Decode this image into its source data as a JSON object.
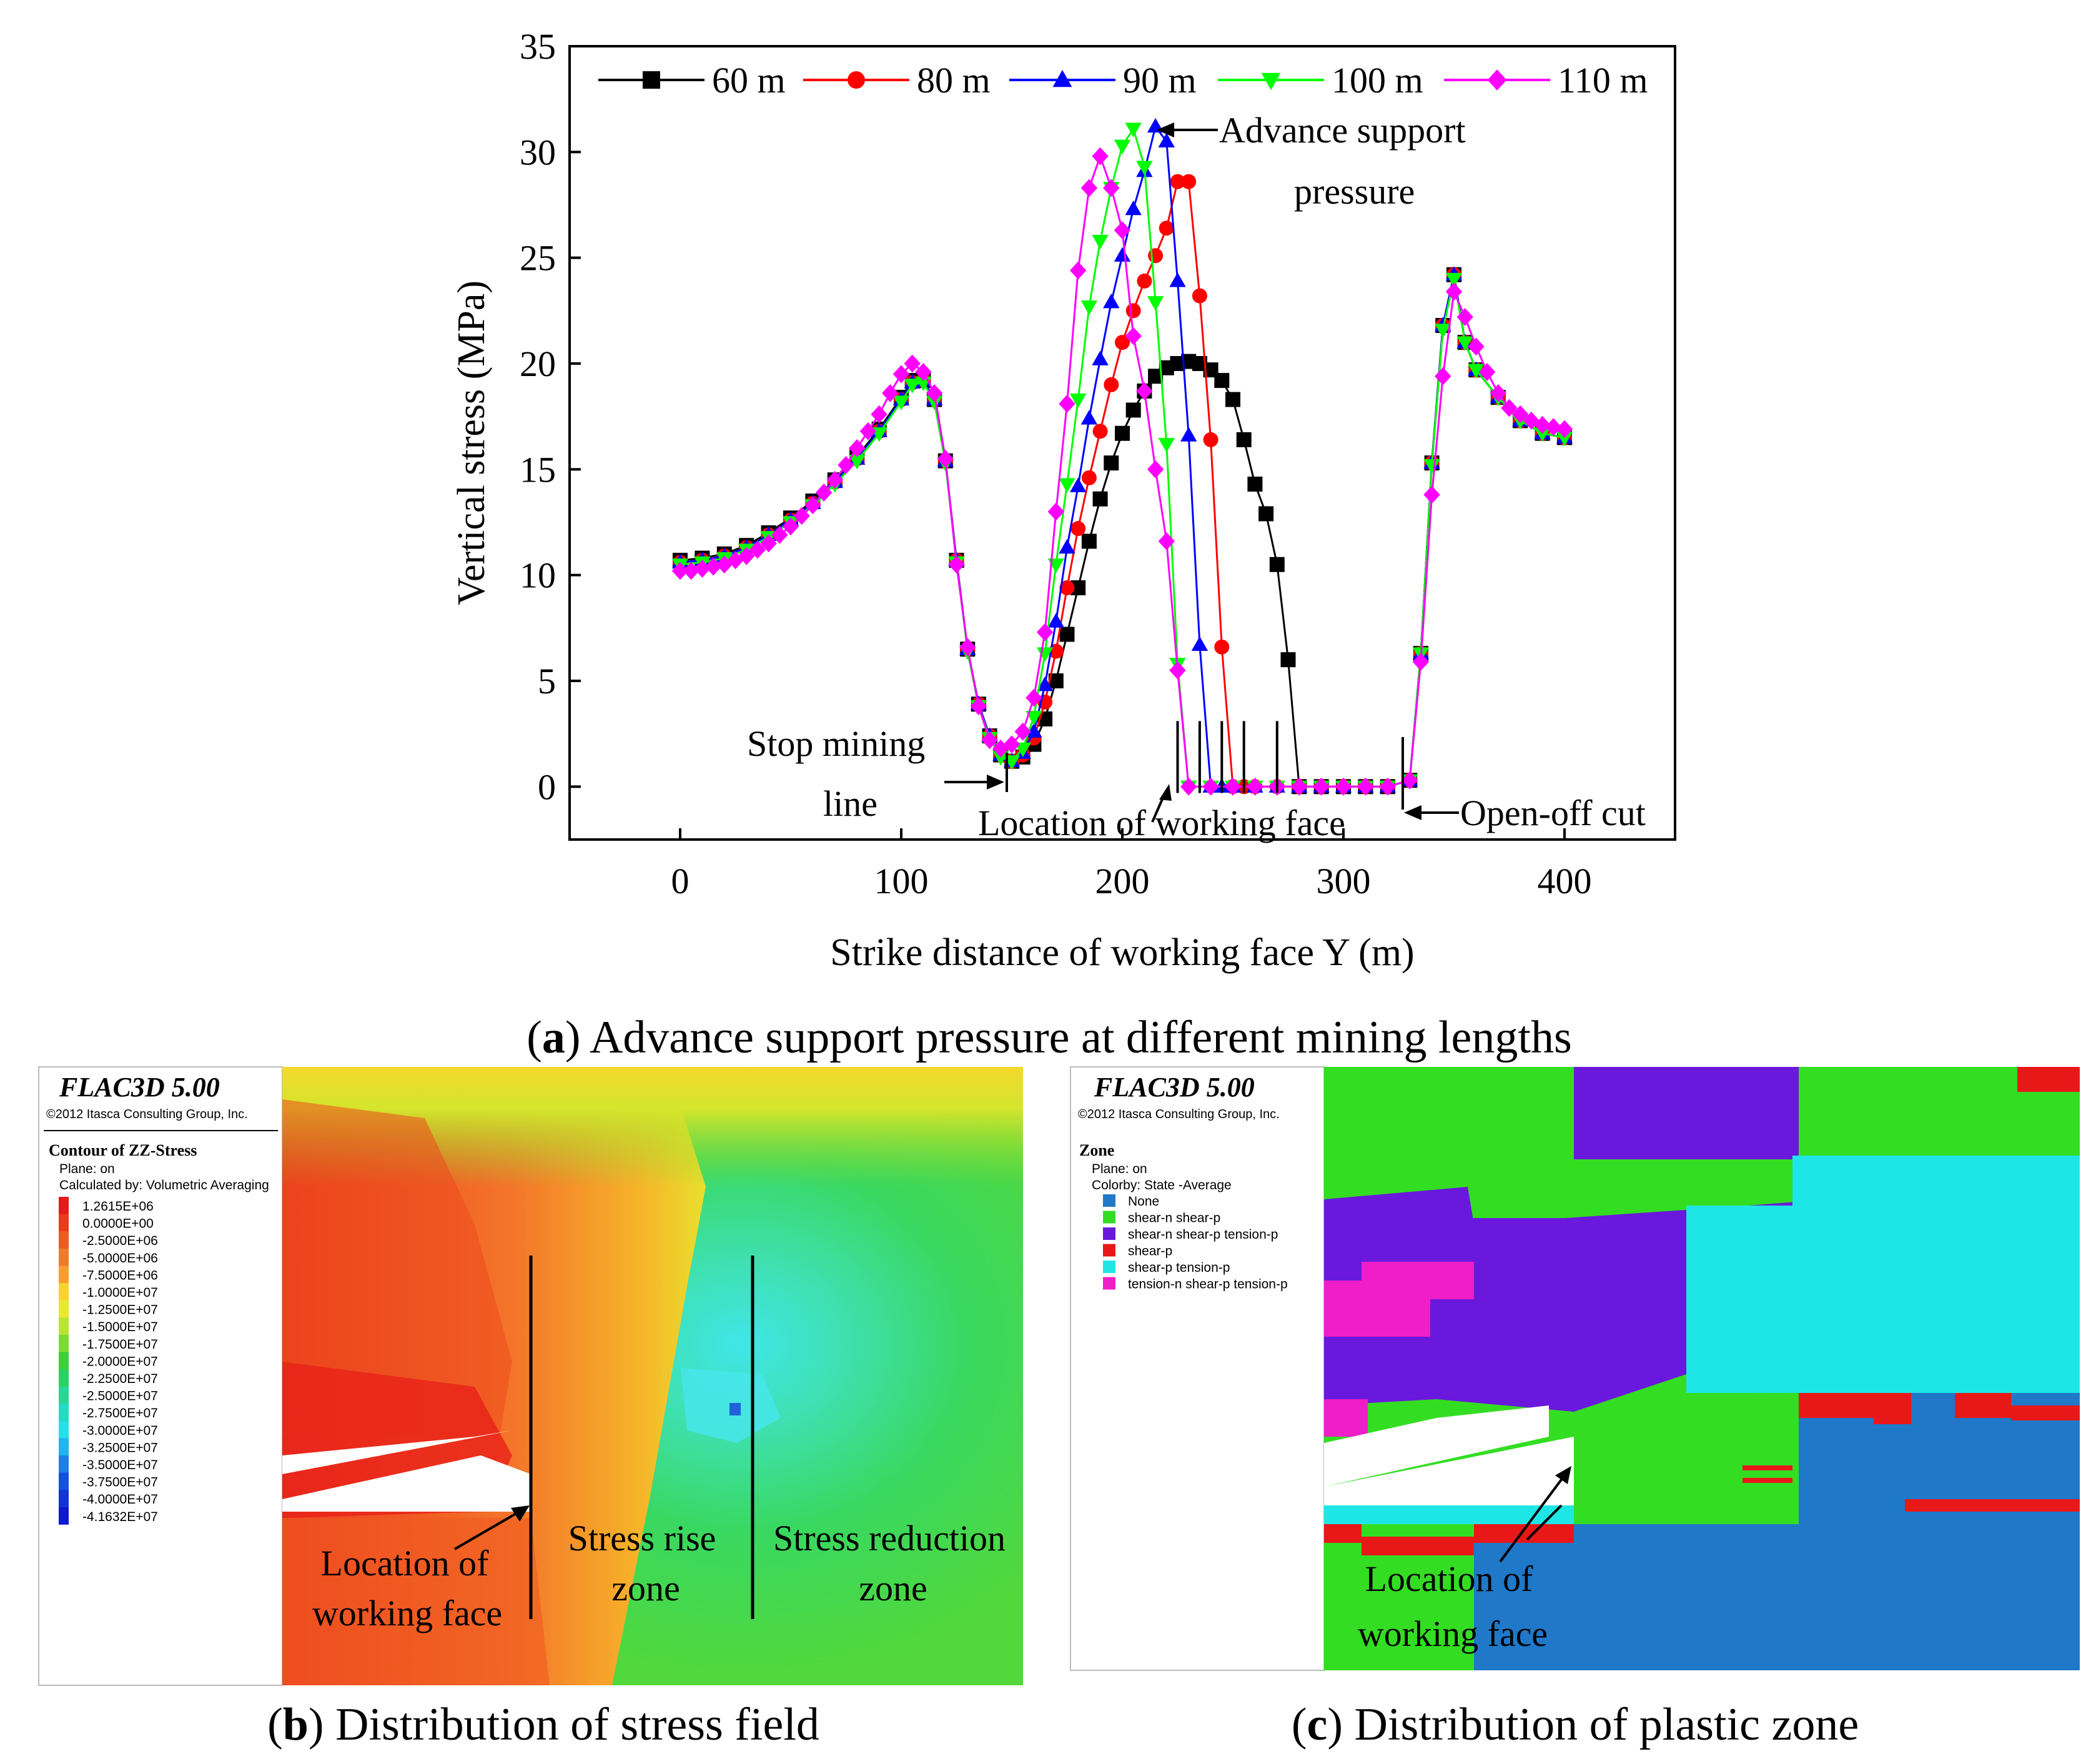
{
  "chart_data": {
    "type": "line",
    "xlabel": "Strike distance of working face Y (m)",
    "ylabel": "Vertical stress (MPa)",
    "xlim": [
      -50,
      450
    ],
    "ylim": [
      -2.5,
      35
    ],
    "xticks": [
      0,
      100,
      200,
      300,
      400
    ],
    "yticks": [
      0,
      5,
      10,
      15,
      20,
      25,
      30,
      35
    ],
    "legend_position": "top",
    "series": [
      {
        "name": "60 m",
        "color": "#000000",
        "marker": "square",
        "x": [
          0,
          10,
          20,
          30,
          40,
          50,
          60,
          70,
          80,
          90,
          100,
          105,
          110,
          115,
          120,
          125,
          130,
          135,
          140,
          145,
          150,
          155,
          160,
          165,
          170,
          175,
          180,
          185,
          190,
          195,
          200,
          205,
          210,
          215,
          220,
          225,
          230,
          235,
          240,
          245,
          250,
          255,
          260,
          265,
          270,
          275,
          280,
          290,
          300,
          310,
          320,
          330,
          335,
          340,
          345,
          350,
          355,
          360,
          370,
          380,
          390,
          400
        ],
        "y": [
          10.7,
          10.8,
          11,
          11.4,
          12,
          12.7,
          13.5,
          14.5,
          15.6,
          16.9,
          18.4,
          19.2,
          19.2,
          18.3,
          15.4,
          10.7,
          6.5,
          3.9,
          2.4,
          1.5,
          1.2,
          1.4,
          2,
          3.2,
          5,
          7.2,
          9.4,
          11.6,
          13.6,
          15.3,
          16.7,
          17.8,
          18.7,
          19.4,
          19.8,
          20,
          20.1,
          20,
          19.7,
          19.2,
          18.3,
          16.4,
          14.3,
          12.9,
          10.5,
          6,
          0,
          0,
          0,
          0,
          0,
          0.3,
          6.3,
          15.3,
          21.8,
          24.2,
          21,
          19.7,
          18.4,
          17.3,
          16.7,
          16.5
        ]
      },
      {
        "name": "80 m",
        "color": "#FF0000",
        "marker": "circle",
        "x": [
          0,
          10,
          20,
          30,
          40,
          50,
          60,
          70,
          80,
          90,
          100,
          105,
          110,
          115,
          120,
          125,
          130,
          135,
          140,
          145,
          150,
          155,
          160,
          165,
          170,
          175,
          180,
          185,
          190,
          195,
          200,
          205,
          210,
          215,
          220,
          225,
          230,
          235,
          240,
          245,
          250,
          255,
          260,
          270,
          280,
          290,
          300,
          310,
          320,
          330,
          335,
          340,
          345,
          350,
          355,
          360,
          370,
          380,
          390,
          400
        ],
        "y": [
          10.6,
          10.7,
          10.9,
          11.3,
          11.9,
          12.6,
          13.4,
          14.4,
          15.5,
          16.8,
          18.3,
          19.1,
          19.2,
          18.3,
          15.4,
          10.7,
          6.5,
          3.9,
          2.4,
          1.5,
          1.2,
          1.5,
          2.3,
          4,
          6.4,
          9.4,
          12.2,
          14.6,
          16.8,
          19,
          21,
          22.5,
          23.9,
          25.1,
          26.4,
          28.6,
          28.6,
          23.2,
          16.4,
          6.6,
          0,
          0,
          0,
          0,
          0,
          0,
          0,
          0,
          0,
          0.3,
          6.3,
          15.3,
          21.8,
          24.2,
          21,
          19.7,
          18.4,
          17.3,
          16.7,
          16.5
        ]
      },
      {
        "name": "90 m",
        "color": "#0000FF",
        "marker": "triangle-up",
        "x": [
          0,
          10,
          20,
          30,
          40,
          50,
          60,
          70,
          80,
          90,
          100,
          105,
          110,
          115,
          120,
          125,
          130,
          135,
          140,
          145,
          150,
          155,
          160,
          165,
          170,
          175,
          180,
          185,
          190,
          195,
          200,
          205,
          210,
          215,
          220,
          225,
          230,
          235,
          240,
          245,
          250,
          260,
          270,
          280,
          290,
          300,
          310,
          320,
          330,
          335,
          340,
          345,
          350,
          355,
          360,
          370,
          380,
          390,
          400
        ],
        "y": [
          10.6,
          10.7,
          10.9,
          11.3,
          11.9,
          12.6,
          13.4,
          14.4,
          15.5,
          16.8,
          18.3,
          19.1,
          19.2,
          18.3,
          15.4,
          10.7,
          6.5,
          3.9,
          2.4,
          1.5,
          1.2,
          1.6,
          2.6,
          4.8,
          7.8,
          11.3,
          14.2,
          17.4,
          20.2,
          22.9,
          25.1,
          27.3,
          29.1,
          31.2,
          30.5,
          23.9,
          16.6,
          6.7,
          0,
          0,
          0,
          0,
          0,
          0,
          0,
          0,
          0,
          0,
          0.3,
          6.3,
          15.3,
          21.8,
          24.2,
          21,
          19.7,
          18.4,
          17.3,
          16.7,
          16.5
        ]
      },
      {
        "name": "100 m",
        "color": "#00FF00",
        "marker": "triangle-down",
        "x": [
          0,
          10,
          20,
          30,
          40,
          50,
          60,
          70,
          80,
          90,
          100,
          105,
          110,
          115,
          120,
          125,
          130,
          135,
          140,
          145,
          150,
          155,
          160,
          165,
          170,
          175,
          180,
          185,
          190,
          195,
          200,
          205,
          210,
          215,
          220,
          225,
          230,
          240,
          250,
          260,
          270,
          280,
          290,
          300,
          310,
          320,
          330,
          335,
          340,
          345,
          350,
          355,
          360,
          370,
          380,
          390,
          400
        ],
        "y": [
          10.5,
          10.6,
          10.8,
          11.2,
          11.8,
          12.5,
          13.3,
          14.3,
          15.4,
          16.7,
          18.2,
          19,
          19.1,
          18.2,
          15.3,
          10.6,
          6.4,
          3.8,
          2.3,
          1.4,
          1.2,
          1.8,
          3.3,
          6.3,
          10.5,
          14.3,
          18.3,
          22.7,
          25.8,
          28.3,
          30.3,
          31.1,
          29.3,
          22.9,
          16.2,
          5.8,
          0,
          0,
          0,
          0,
          0,
          0,
          0,
          0,
          0,
          0,
          0.3,
          6.3,
          15.2,
          21.6,
          24,
          21,
          19.7,
          18.4,
          17.3,
          16.7,
          16.5
        ]
      },
      {
        "name": "110 m",
        "color": "#FF00FF",
        "marker": "diamond",
        "x": [
          0,
          5,
          10,
          15,
          20,
          25,
          30,
          35,
          40,
          45,
          50,
          55,
          60,
          65,
          70,
          75,
          80,
          85,
          90,
          95,
          100,
          105,
          110,
          115,
          120,
          125,
          130,
          135,
          140,
          145,
          150,
          155,
          160,
          165,
          170,
          175,
          180,
          185,
          190,
          195,
          200,
          205,
          210,
          215,
          220,
          225,
          230,
          240,
          250,
          260,
          270,
          280,
          290,
          300,
          310,
          320,
          330,
          335,
          340,
          345,
          350,
          355,
          360,
          365,
          370,
          375,
          380,
          385,
          390,
          395,
          400
        ],
        "y": [
          10.2,
          10.2,
          10.3,
          10.4,
          10.5,
          10.7,
          10.9,
          11.2,
          11.5,
          11.9,
          12.3,
          12.8,
          13.3,
          13.9,
          14.5,
          15.2,
          16,
          16.8,
          17.6,
          18.6,
          19.5,
          20,
          19.6,
          18.6,
          15.5,
          10.5,
          6.6,
          3.8,
          2.2,
          1.8,
          2,
          2.6,
          4.2,
          7.3,
          13,
          18.1,
          24.4,
          28.3,
          29.8,
          28.3,
          26.3,
          21.3,
          18.7,
          15,
          11.6,
          5.5,
          0,
          0,
          0,
          0,
          0,
          0,
          0,
          0,
          0,
          0,
          0.3,
          5.9,
          13.8,
          19.4,
          23.4,
          22.2,
          20.8,
          19.6,
          18.6,
          17.9,
          17.6,
          17.3,
          17.1,
          17.0,
          16.9
        ]
      }
    ],
    "annotations": [
      {
        "label": "Advance support",
        "label2": "pressure"
      },
      {
        "label": "Stop mining",
        "label2": "line"
      },
      {
        "label": "Location of working face"
      },
      {
        "label": "Open-off cut"
      }
    ],
    "caption_bold": "a",
    "caption": "Advance support pressure at different mining lengths"
  },
  "panel_b": {
    "software": "FLAC3D 5.00",
    "copyright": "©2012 Itasca Consulting Group, Inc.",
    "contour_title": "Contour of ZZ-Stress",
    "plane": "Plane: on",
    "calc": "Calculated by: Volumetric Averaging",
    "legend": [
      {
        "label": "1.2615E+06",
        "color": "#e8191a"
      },
      {
        "label": "0.0000E+00",
        "color": "#ee3a1b"
      },
      {
        "label": "-2.5000E+06",
        "color": "#f15a21"
      },
      {
        "label": "-5.0000E+06",
        "color": "#f27a24"
      },
      {
        "label": "-7.5000E+06",
        "color": "#f6a028"
      },
      {
        "label": "-1.0000E+07",
        "color": "#f9d32a"
      },
      {
        "label": "-1.2500E+07",
        "color": "#e8ea2a"
      },
      {
        "label": "-1.5000E+07",
        "color": "#b9e52c"
      },
      {
        "label": "-1.7500E+07",
        "color": "#7ddc2e"
      },
      {
        "label": "-2.0000E+07",
        "color": "#39d23a"
      },
      {
        "label": "-2.2500E+07",
        "color": "#25d563"
      },
      {
        "label": "-2.5000E+07",
        "color": "#22da95"
      },
      {
        "label": "-2.7500E+07",
        "color": "#20dec3"
      },
      {
        "label": "-3.0000E+07",
        "color": "#1fe2ea"
      },
      {
        "label": "-3.2500E+07",
        "color": "#1ab7f0"
      },
      {
        "label": "-3.5000E+07",
        "color": "#1780ec"
      },
      {
        "label": "-3.7500E+07",
        "color": "#1450e4"
      },
      {
        "label": "-4.0000E+07",
        "color": "#1232dc"
      },
      {
        "label": "-4.1632E+07",
        "color": "#0f18d4"
      }
    ],
    "labels": {
      "face_1": "Location of",
      "face_2": "working face",
      "rise_1": "Stress rise",
      "rise_2": "zone",
      "red_1": "Stress reduction",
      "red_2": "zone"
    },
    "caption_bold": "b",
    "caption": "Distribution of stress field"
  },
  "panel_c": {
    "software": "FLAC3D 5.00",
    "copyright": "©2012 Itasca Consulting Group, Inc.",
    "zone_title": "Zone",
    "plane": "Plane: on",
    "colorby": "Colorby: State  -Average",
    "legend": [
      {
        "label": "None",
        "color": "#1f78c8"
      },
      {
        "label": "shear-n shear-p",
        "color": "#33dd22"
      },
      {
        "label": "shear-n shear-p tension-p",
        "color": "#6a18dc"
      },
      {
        "label": "shear-p",
        "color": "#e81818"
      },
      {
        "label": "shear-p tension-p",
        "color": "#1fe6e6"
      },
      {
        "label": "tension-n shear-p tension-p",
        "color": "#f01ec8"
      }
    ],
    "labels": {
      "face_1": "Location of",
      "face_2": "working face"
    },
    "caption_bold": "c",
    "caption": "Distribution of plastic zone"
  }
}
